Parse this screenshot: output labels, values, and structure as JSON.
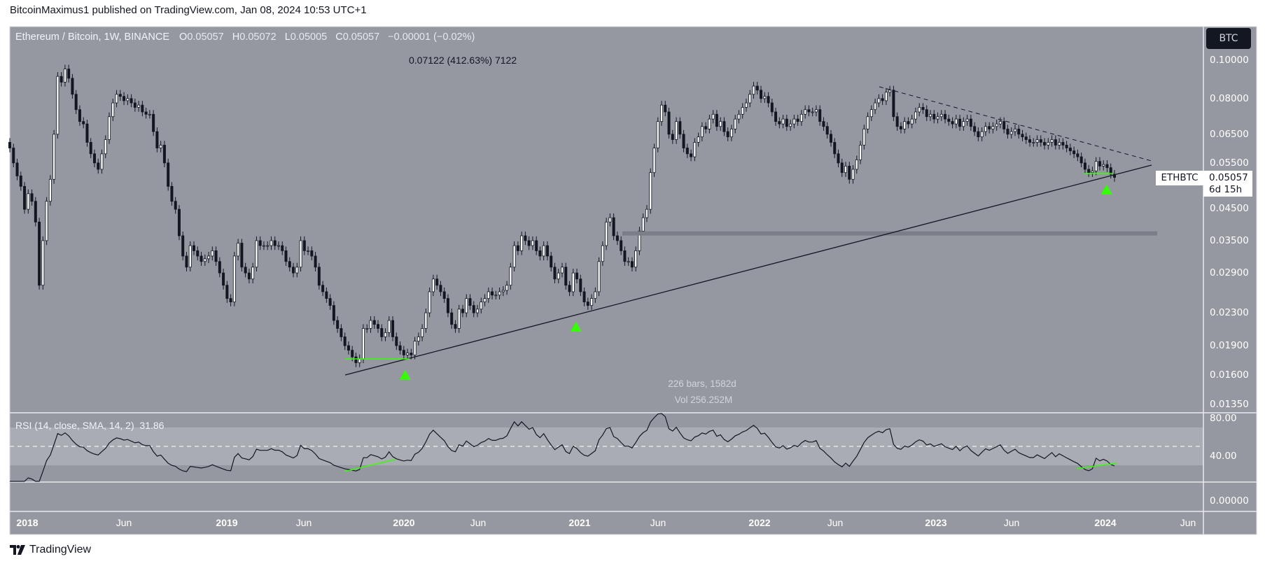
{
  "header": {
    "publisher_line": "BitcoinMaximus1 published on TradingView.com, Jan 08, 2024 10:53 UTC+1"
  },
  "legend": {
    "symbol": "Ethereum / Bitcoin, 1W, BINANCE",
    "o_label": "O",
    "o": "0.05057",
    "h_label": "H",
    "h": "0.05072",
    "l_label": "L",
    "l": "0.05005",
    "c_label": "C",
    "c": "0.05057",
    "change": "−0.00001 (−0.02%)"
  },
  "measure": {
    "range_text": "0.07122 (412.63%) 7122",
    "bars_text": "226 bars, 1582d",
    "vol_text": "Vol 256.252M"
  },
  "currency_button": "BTC",
  "last_price": {
    "symbol": "ETHBTC",
    "price": "0.05057",
    "countdown": "6d 15h"
  },
  "rsi": {
    "title": "RSI (14, close, SMA, 14, 2)",
    "value": "31.86",
    "ticks": [
      "80.00",
      "40.00"
    ],
    "levels": {
      "upper": 70,
      "middle": 50,
      "lower": 30
    }
  },
  "lower_pane_tick": "0.00000",
  "logo": "TradingView",
  "colors": {
    "pane_bg": "#9598a1",
    "rsi_band": "#aaacb4",
    "bull": "#ffffff",
    "bear": "#131722",
    "marker": "#33ff00",
    "sr_zone": "#7b7e87"
  },
  "chart_data": {
    "type": "candlestick",
    "scale": "log",
    "interval": "1W",
    "price_ticks": [
      "0.10000",
      "0.08000",
      "0.06500",
      "0.05500",
      "0.04500",
      "0.03500",
      "0.02900",
      "0.02300",
      "0.01900",
      "0.01600",
      "0.01350"
    ],
    "time_labels": [
      "2018",
      "Jun",
      "2019",
      "Jun",
      "2020",
      "Jun",
      "2021",
      "Jun",
      "2022",
      "Jun",
      "2023",
      "Jun",
      "2024",
      "Jun"
    ],
    "first_open": 0.062,
    "closes": [
      0.06,
      0.055,
      0.051,
      0.048,
      0.042,
      0.046,
      0.044,
      0.039,
      0.027,
      0.035,
      0.044,
      0.05,
      0.065,
      0.091,
      0.088,
      0.095,
      0.09,
      0.082,
      0.075,
      0.07,
      0.069,
      0.062,
      0.058,
      0.055,
      0.053,
      0.058,
      0.063,
      0.072,
      0.078,
      0.082,
      0.081,
      0.079,
      0.08,
      0.078,
      0.076,
      0.077,
      0.074,
      0.073,
      0.073,
      0.066,
      0.06,
      0.061,
      0.055,
      0.048,
      0.044,
      0.042,
      0.036,
      0.032,
      0.03,
      0.034,
      0.033,
      0.032,
      0.031,
      0.0315,
      0.032,
      0.033,
      0.031,
      0.029,
      0.027,
      0.025,
      0.0245,
      0.032,
      0.0345,
      0.03,
      0.029,
      0.028,
      0.03,
      0.035,
      0.034,
      0.034,
      0.034,
      0.035,
      0.034,
      0.034,
      0.033,
      0.031,
      0.03,
      0.029,
      0.03,
      0.035,
      0.033,
      0.033,
      0.032,
      0.03,
      0.027,
      0.026,
      0.025,
      0.024,
      0.022,
      0.021,
      0.02,
      0.019,
      0.0185,
      0.0178,
      0.0172,
      0.0176,
      0.021,
      0.021,
      0.022,
      0.0215,
      0.021,
      0.02,
      0.0205,
      0.022,
      0.02,
      0.019,
      0.0185,
      0.018,
      0.0182,
      0.018,
      0.0195,
      0.02,
      0.021,
      0.023,
      0.026,
      0.028,
      0.027,
      0.026,
      0.025,
      0.023,
      0.0215,
      0.021,
      0.0235,
      0.023,
      0.025,
      0.024,
      0.023,
      0.0235,
      0.0245,
      0.025,
      0.026,
      0.0255,
      0.0255,
      0.026,
      0.0262,
      0.027,
      0.03,
      0.034,
      0.033,
      0.036,
      0.035,
      0.034,
      0.035,
      0.033,
      0.032,
      0.034,
      0.032,
      0.03,
      0.028,
      0.029,
      0.03,
      0.027,
      0.026,
      0.029,
      0.028,
      0.026,
      0.0245,
      0.024,
      0.025,
      0.026,
      0.031,
      0.034,
      0.039,
      0.04,
      0.036,
      0.035,
      0.033,
      0.031,
      0.031,
      0.03,
      0.033,
      0.037,
      0.04,
      0.042,
      0.052,
      0.06,
      0.07,
      0.077,
      0.074,
      0.065,
      0.063,
      0.07,
      0.065,
      0.06,
      0.058,
      0.057,
      0.062,
      0.064,
      0.068,
      0.067,
      0.071,
      0.073,
      0.068,
      0.07,
      0.066,
      0.064,
      0.067,
      0.071,
      0.073,
      0.076,
      0.078,
      0.082,
      0.086,
      0.084,
      0.08,
      0.081,
      0.078,
      0.074,
      0.07,
      0.069,
      0.071,
      0.068,
      0.069,
      0.071,
      0.07,
      0.073,
      0.075,
      0.074,
      0.074,
      0.075,
      0.07,
      0.068,
      0.065,
      0.062,
      0.058,
      0.055,
      0.052,
      0.054,
      0.05,
      0.053,
      0.056,
      0.061,
      0.067,
      0.072,
      0.075,
      0.078,
      0.08,
      0.079,
      0.083,
      0.084,
      0.072,
      0.068,
      0.067,
      0.07,
      0.069,
      0.071,
      0.074,
      0.076,
      0.075,
      0.072,
      0.073,
      0.071,
      0.072,
      0.073,
      0.071,
      0.07,
      0.069,
      0.071,
      0.068,
      0.07,
      0.071,
      0.068,
      0.066,
      0.064,
      0.066,
      0.068,
      0.067,
      0.068,
      0.069,
      0.07,
      0.067,
      0.065,
      0.066,
      0.067,
      0.065,
      0.064,
      0.063,
      0.062,
      0.062,
      0.063,
      0.062,
      0.061,
      0.062,
      0.063,
      0.061,
      0.062,
      0.061,
      0.06,
      0.059,
      0.058,
      0.057,
      0.055,
      0.053,
      0.052,
      0.0525,
      0.0555,
      0.054,
      0.0545,
      0.0535,
      0.0515,
      0.05057
    ],
    "support_zone_price": 0.0365
  }
}
